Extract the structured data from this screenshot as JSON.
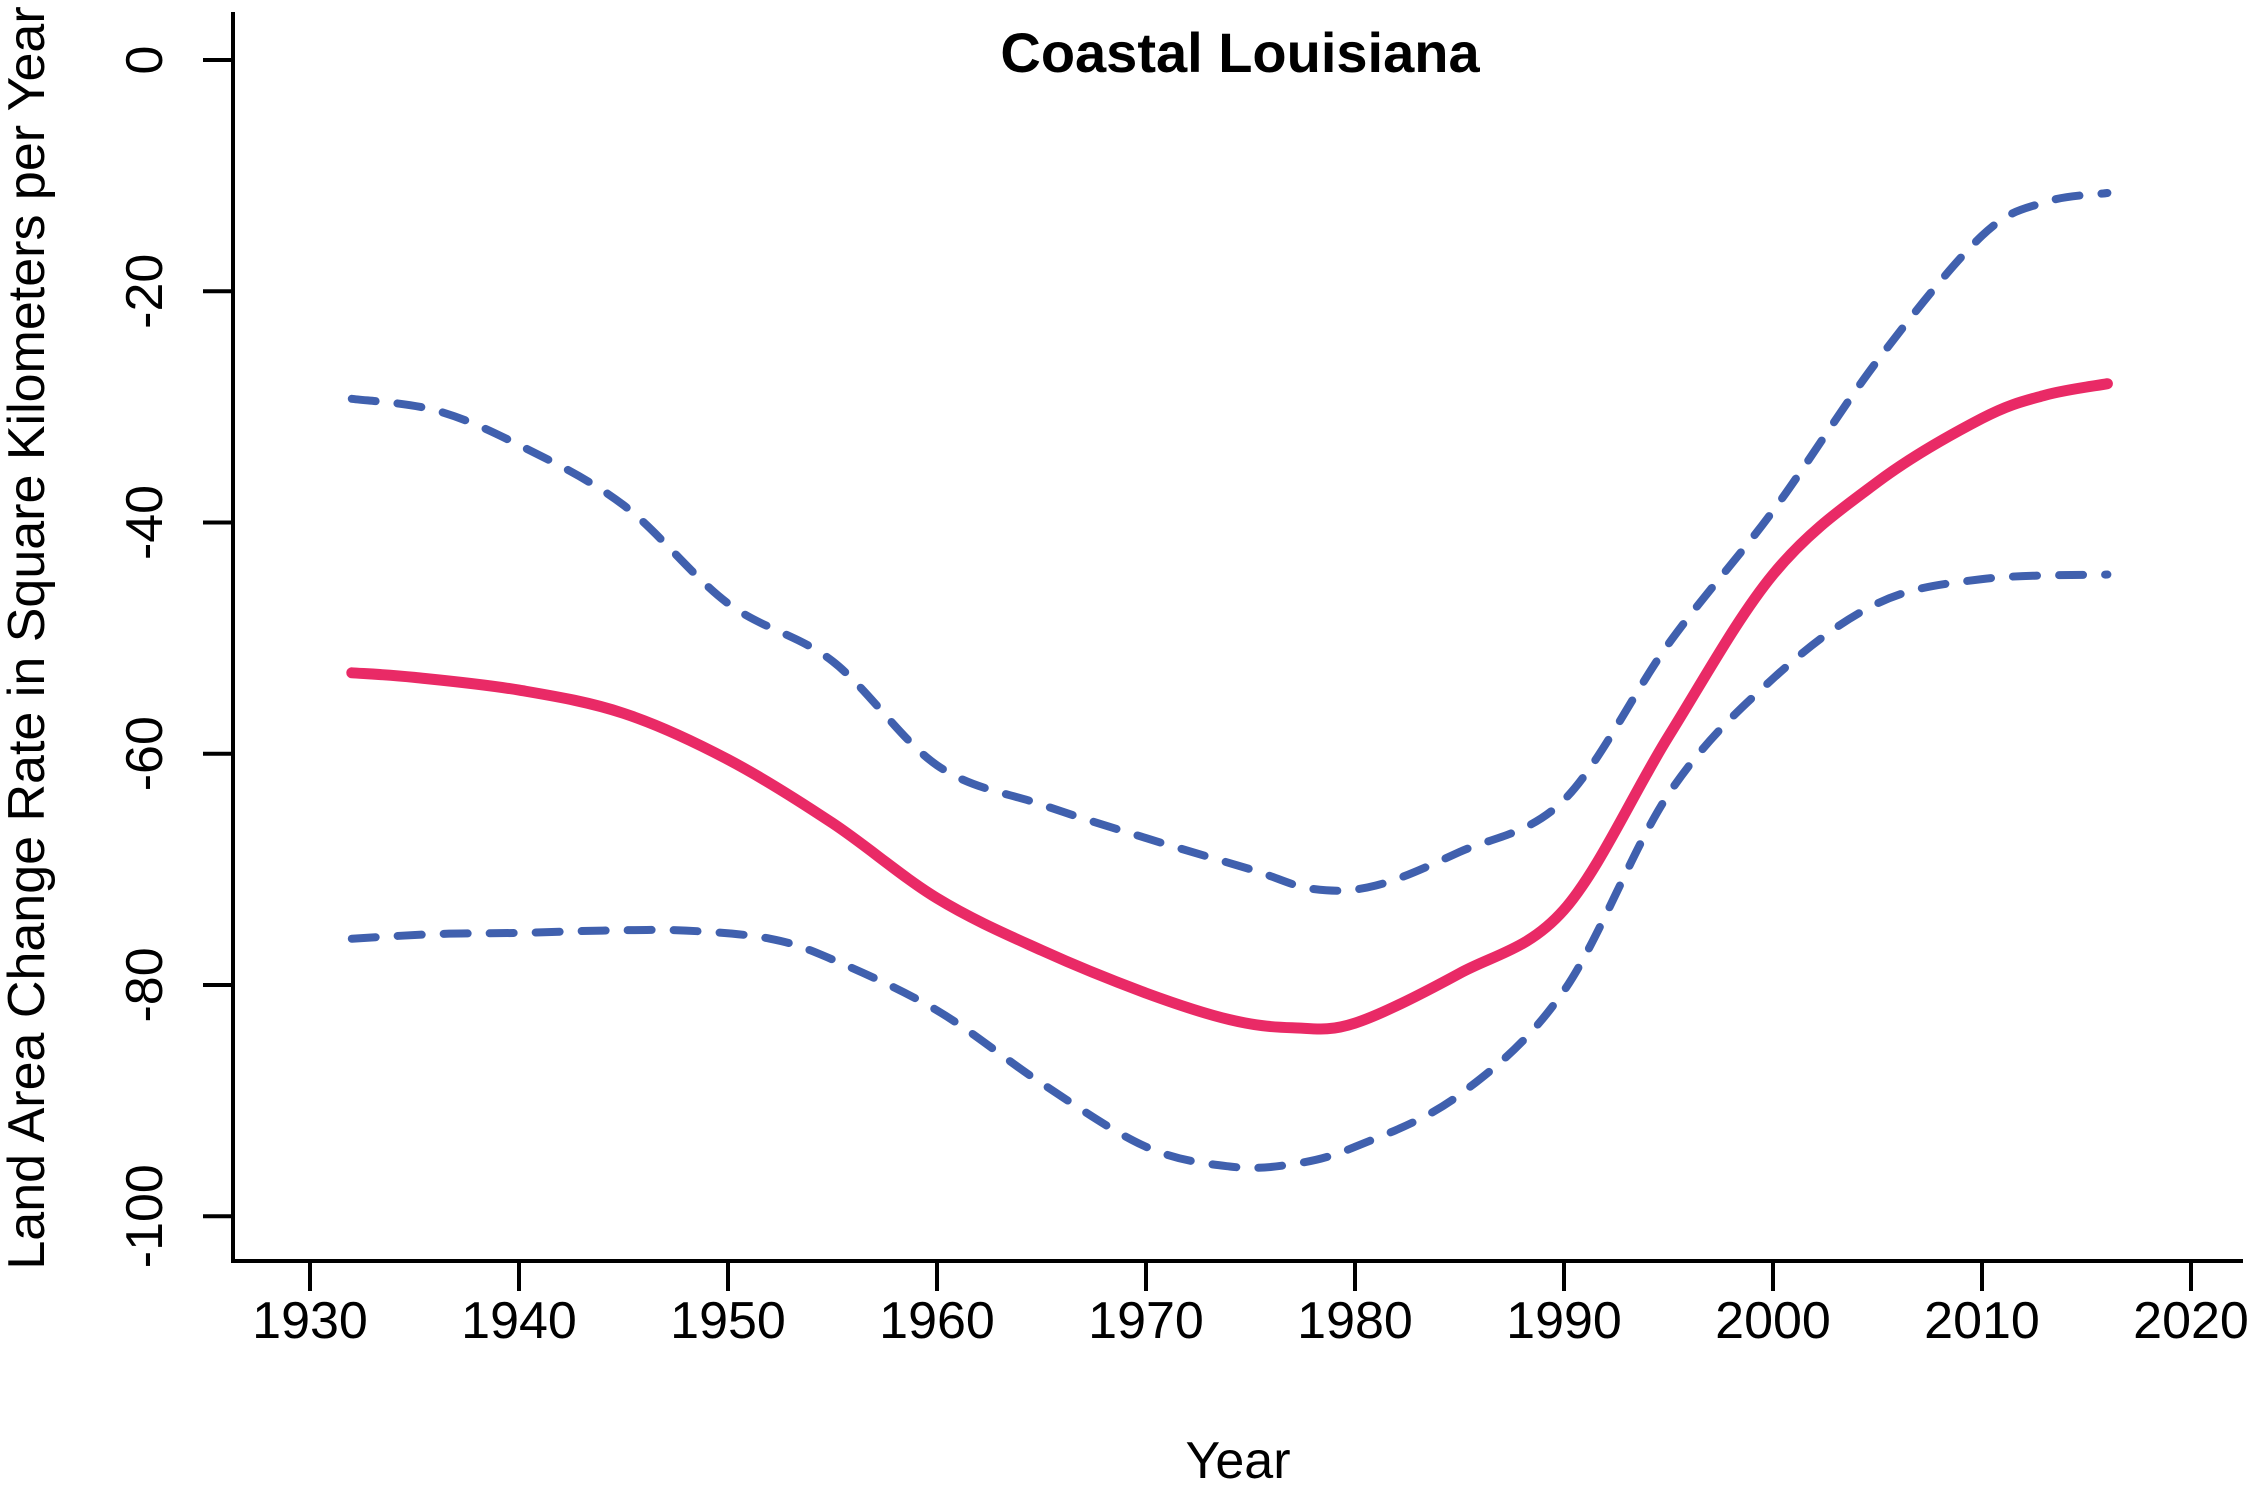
{
  "title": "Coastal Louisiana",
  "colors": {
    "central_line": "#E92A66",
    "bound_lines": "#4060AE",
    "axis": "#000000",
    "background": "#FFFFFF"
  },
  "chart_data": {
    "type": "line",
    "title": "Coastal Louisiana",
    "xlabel": "Year",
    "ylabel": "Land Area Change Rate in Square Kilometers per Year",
    "xlim": [
      1926.3,
      2022.5
    ],
    "ylim": [
      -104,
      4
    ],
    "grid": false,
    "legend": "none",
    "x_ticks": [
      1930,
      1940,
      1950,
      1960,
      1970,
      1980,
      1990,
      2000,
      2010,
      2020
    ],
    "x_tick_labels": [
      "1930",
      "1940",
      "1950",
      "1960",
      "1970",
      "1980",
      "1990",
      "2000",
      "2010",
      "2020"
    ],
    "y_ticks": [
      0,
      -20,
      -40,
      -60,
      -80,
      -100
    ],
    "y_tick_labels": [
      "0",
      "-20",
      "-40",
      "-60",
      "-80",
      "-100"
    ],
    "series": [
      {
        "name": "solid-central-line",
        "style": "solid",
        "color": "#E92A66",
        "width": 11,
        "points": [
          [
            1932,
            -53.0
          ],
          [
            1935,
            -53.4
          ],
          [
            1940,
            -54.5
          ],
          [
            1945,
            -56.5
          ],
          [
            1950,
            -60.5
          ],
          [
            1955,
            -66.0
          ],
          [
            1960,
            -72.5
          ],
          [
            1965,
            -77.0
          ],
          [
            1970,
            -80.7
          ],
          [
            1974,
            -83.0
          ],
          [
            1977,
            -83.7
          ],
          [
            1980,
            -83.3
          ],
          [
            1985,
            -79.0
          ],
          [
            1990,
            -73.5
          ],
          [
            1995,
            -58.5
          ],
          [
            2000,
            -44.5
          ],
          [
            2005,
            -36.5
          ],
          [
            2010,
            -31.0
          ],
          [
            2013,
            -29.0
          ],
          [
            2016,
            -28.0
          ]
        ]
      },
      {
        "name": "dashed-upper-bound",
        "style": "dashed",
        "color": "#4060AE",
        "width": 8,
        "points": [
          [
            1932,
            -29.3
          ],
          [
            1936,
            -30.3
          ],
          [
            1940,
            -33.3
          ],
          [
            1945,
            -38.5
          ],
          [
            1950,
            -47.0
          ],
          [
            1955,
            -52.0
          ],
          [
            1960,
            -61.0
          ],
          [
            1965,
            -64.4
          ],
          [
            1970,
            -67.3
          ],
          [
            1975,
            -70.0
          ],
          [
            1978,
            -71.7
          ],
          [
            1981,
            -71.4
          ],
          [
            1985,
            -68.5
          ],
          [
            1990,
            -64.0
          ],
          [
            1995,
            -50.5
          ],
          [
            2000,
            -39.0
          ],
          [
            2005,
            -26.0
          ],
          [
            2010,
            -15.2
          ],
          [
            2013,
            -12.3
          ],
          [
            2016,
            -11.5
          ]
        ]
      },
      {
        "name": "dashed-lower-bound",
        "style": "dashed",
        "color": "#4060AE",
        "width": 8,
        "points": [
          [
            1932,
            -76.0
          ],
          [
            1936,
            -75.6
          ],
          [
            1940,
            -75.5
          ],
          [
            1944,
            -75.3
          ],
          [
            1948,
            -75.3
          ],
          [
            1952,
            -76.0
          ],
          [
            1955,
            -77.8
          ],
          [
            1960,
            -82.2
          ],
          [
            1965,
            -88.5
          ],
          [
            1970,
            -94.0
          ],
          [
            1974,
            -95.7
          ],
          [
            1977,
            -95.5
          ],
          [
            1980,
            -94.0
          ],
          [
            1985,
            -89.5
          ],
          [
            1990,
            -80.5
          ],
          [
            1995,
            -63.5
          ],
          [
            2000,
            -53.5
          ],
          [
            2005,
            -47.0
          ],
          [
            2010,
            -44.9
          ],
          [
            2016,
            -44.5
          ]
        ]
      }
    ]
  }
}
